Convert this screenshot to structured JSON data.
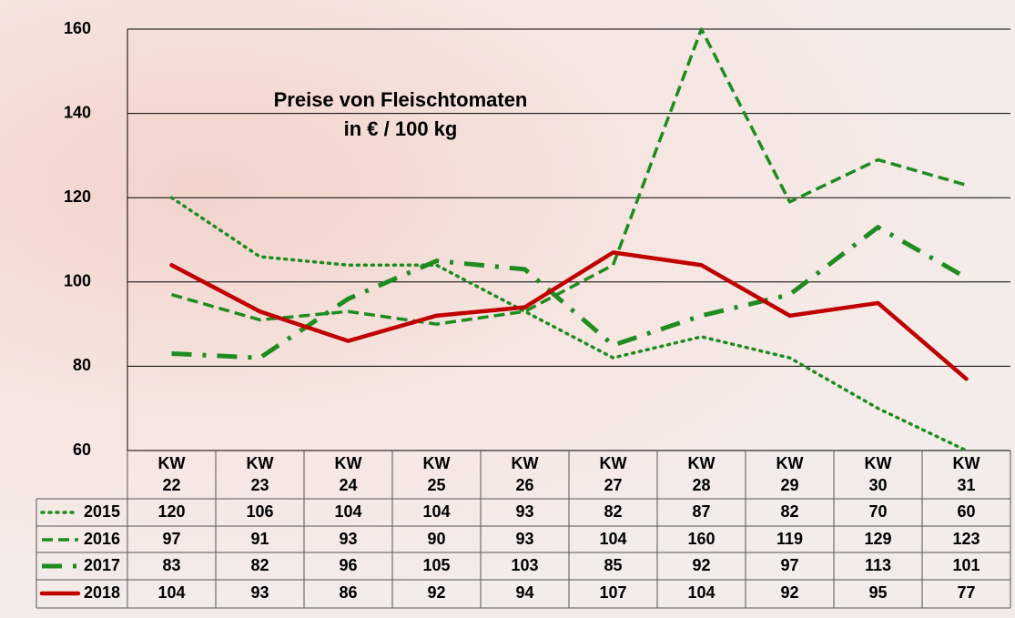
{
  "chart_data": {
    "type": "line",
    "title": "Preise von Fleischtomaten\nin € / 100 kg",
    "categories": [
      "KW 22",
      "KW 23",
      "KW 24",
      "KW 25",
      "KW 26",
      "KW 27",
      "KW 28",
      "KW 29",
      "KW 30",
      "KW 31"
    ],
    "series": [
      {
        "name": "2015",
        "color": "#1e8c1e",
        "style": "dotted",
        "values": [
          120,
          106,
          104,
          104,
          93,
          82,
          87,
          82,
          70,
          60
        ]
      },
      {
        "name": "2016",
        "color": "#1e8c1e",
        "style": "dashed",
        "values": [
          97,
          91,
          93,
          90,
          93,
          104,
          160,
          119,
          129,
          123
        ]
      },
      {
        "name": "2017",
        "color": "#1e8c1e",
        "style": "dashdot",
        "values": [
          83,
          82,
          96,
          105,
          103,
          85,
          92,
          97,
          113,
          101
        ]
      },
      {
        "name": "2018",
        "color": "#c00000",
        "style": "solid",
        "values": [
          104,
          93,
          86,
          92,
          94,
          107,
          104,
          92,
          95,
          77
        ]
      }
    ],
    "ylim": [
      60,
      160
    ],
    "yticks": [
      60,
      80,
      100,
      120,
      140,
      160
    ],
    "grid": true
  }
}
